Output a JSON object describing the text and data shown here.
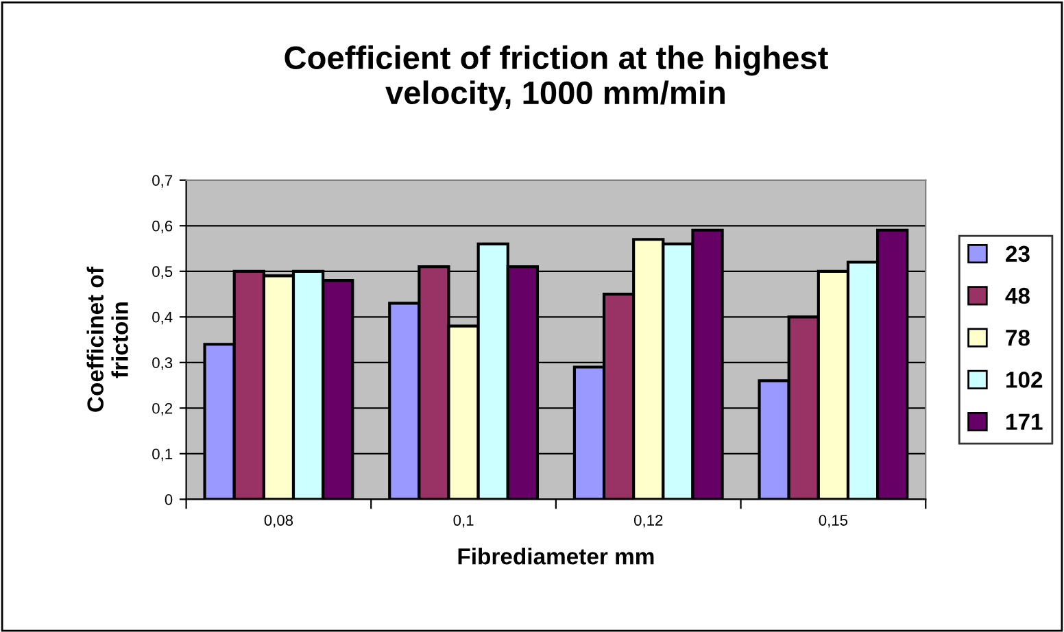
{
  "chart_data": {
    "type": "bar",
    "title": "Coefficient of friction at the highest\nvelocity, 1000 mm/min",
    "xlabel": "Fibrediameter mm",
    "ylabel": "Coefficinet of\nfrictoin",
    "categories": [
      "0,08",
      "0,1",
      "0,12",
      "0,15"
    ],
    "series": [
      {
        "name": "23",
        "color": "#9999ff",
        "values": [
          0.34,
          0.43,
          0.29,
          0.26
        ]
      },
      {
        "name": "48",
        "color": "#993366",
        "values": [
          0.5,
          0.51,
          0.45,
          0.4
        ]
      },
      {
        "name": "78",
        "color": "#ffffcc",
        "values": [
          0.49,
          0.38,
          0.57,
          0.5
        ]
      },
      {
        "name": "102",
        "color": "#ccffff",
        "values": [
          0.5,
          0.56,
          0.56,
          0.52
        ]
      },
      {
        "name": "171",
        "color": "#660066",
        "values": [
          0.48,
          0.51,
          0.59,
          0.59
        ]
      }
    ],
    "ylim": [
      0,
      0.7
    ],
    "yticks": [
      0,
      {
        "value": 0.1,
        "label": "0,1"
      },
      {
        "value": 0.2,
        "label": "0,2"
      },
      {
        "value": 0.3,
        "label": "0,3"
      },
      {
        "value": 0.4,
        "label": "0,4"
      },
      {
        "value": 0.5,
        "label": "0,5"
      },
      {
        "value": 0.6,
        "label": "0,6"
      },
      {
        "value": 0.7,
        "label": "0,7"
      }
    ],
    "grid": "y",
    "legend": "right"
  }
}
